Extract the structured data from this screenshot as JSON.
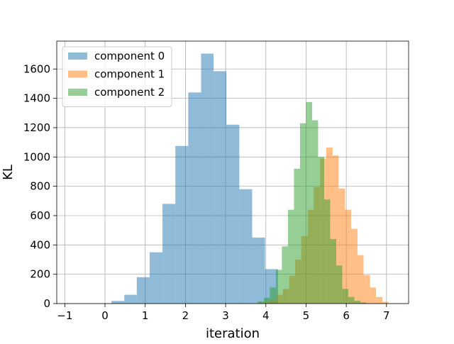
{
  "chart_data": {
    "type": "histogram",
    "title": "",
    "xlabel": "iteration",
    "ylabel": "KL",
    "xlim": [
      -1.2,
      7.55
    ],
    "ylim": [
      0,
      1790
    ],
    "xticks": [
      -1,
      0,
      1,
      2,
      3,
      4,
      5,
      6,
      7
    ],
    "yticks": [
      0,
      200,
      400,
      600,
      800,
      1000,
      1200,
      1400,
      1600
    ],
    "grid": true,
    "legend_position": "upper-left",
    "alpha": 0.5,
    "series": [
      {
        "name": "component 0",
        "color": "#1f77b4",
        "bin_edges": [
          0.16,
          0.48,
          0.79,
          1.11,
          1.43,
          1.75,
          2.07,
          2.39,
          2.7,
          3.02,
          3.34,
          3.66,
          3.98,
          4.3
        ],
        "counts": [
          18,
          60,
          180,
          350,
          680,
          1075,
          1440,
          1705,
          1585,
          1220,
          780,
          450,
          235
        ]
      },
      {
        "name": "component 1",
        "color": "#ff7f0e",
        "bin_edges": [
          3.96,
          4.11,
          4.27,
          4.42,
          4.58,
          4.73,
          4.88,
          5.04,
          5.19,
          5.35,
          5.5,
          5.66,
          5.81,
          5.97,
          6.12,
          6.28,
          6.43,
          6.59,
          6.74,
          6.9,
          7.05
        ],
        "counts": [
          15,
          25,
          60,
          100,
          190,
          300,
          460,
          640,
          795,
          990,
          1065,
          1010,
          785,
          640,
          510,
          330,
          195,
          110,
          45,
          12
        ]
      },
      {
        "name": "component 2",
        "color": "#2ca02c",
        "bin_edges": [
          3.8,
          3.95,
          4.1,
          4.25,
          4.4,
          4.55,
          4.7,
          4.85,
          5.0,
          5.15,
          5.3,
          5.45,
          5.6,
          5.75,
          5.9,
          6.05,
          6.2,
          6.35,
          6.5
        ],
        "counts": [
          15,
          40,
          110,
          230,
          390,
          640,
          920,
          1230,
          1375,
          1250,
          1000,
          710,
          440,
          260,
          100,
          45,
          20,
          8
        ]
      }
    ]
  }
}
